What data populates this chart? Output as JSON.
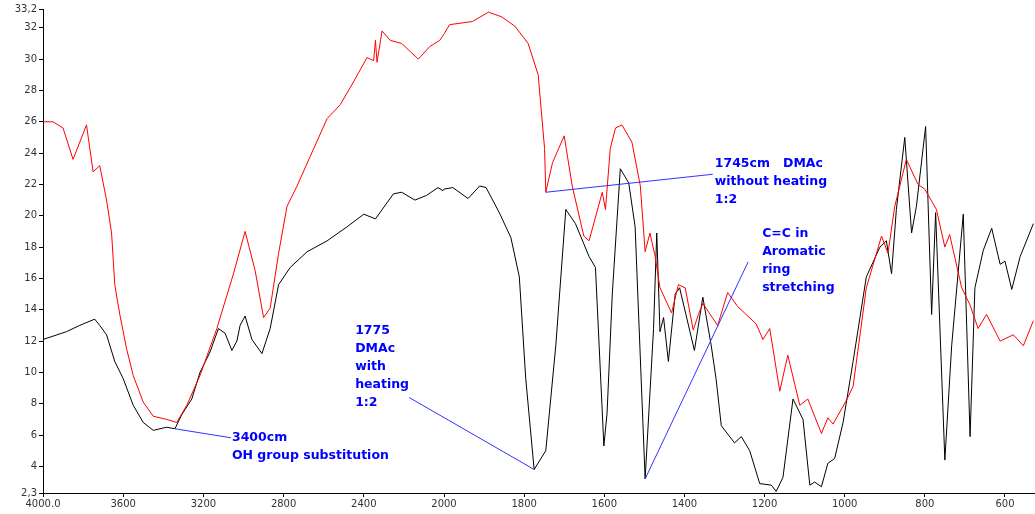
{
  "chart_data": [
    {
      "type": "line",
      "xlim": [
        4000,
        2000
      ],
      "xticks": [
        {
          "value": 4000,
          "label": "4000.0"
        },
        3600,
        3200,
        2800,
        2400,
        2000
      ],
      "ylim": [
        2.3,
        33.2
      ],
      "yticks": [
        {
          "value": 2.3,
          "label": "2,3"
        },
        4,
        6,
        8,
        10,
        12,
        14,
        16,
        18,
        20,
        22,
        24,
        26,
        28,
        30,
        32,
        {
          "value": 33.2,
          "label": "33,2"
        }
      ],
      "grid": false,
      "legend": false,
      "series": [
        {
          "color": "#ff0000",
          "x": [
            4000,
            3950,
            3900,
            3850,
            3783,
            3750,
            3717,
            3683,
            3658,
            3642,
            3617,
            3583,
            3550,
            3500,
            3450,
            3383,
            3333,
            3283,
            3217,
            3133,
            3050,
            2992,
            2942,
            2900,
            2867,
            2825,
            2783,
            2733,
            2667,
            2583,
            2517,
            2449,
            2384,
            2351,
            2342,
            2334,
            2309,
            2268,
            2211,
            2128,
            2071,
            2021,
            2000
          ],
          "values": [
            26.0,
            26.0,
            25.6,
            23.6,
            25.8,
            22.8,
            23.2,
            21.0,
            18.9,
            15.6,
            13.7,
            11.5,
            9.8,
            8.1,
            7.2,
            7.0,
            6.8,
            7.9,
            9.8,
            12.8,
            16.3,
            19.0,
            16.5,
            13.5,
            14.1,
            17.6,
            20.6,
            21.9,
            23.8,
            26.2,
            27.1,
            28.6,
            30.1,
            29.9,
            31.2,
            29.8,
            31.8,
            31.2,
            31.0,
            30.0,
            30.8,
            31.2,
            31.6
          ]
        },
        {
          "color": "#000000",
          "x": [
            4000,
            3883,
            3817,
            3742,
            3717,
            3683,
            3642,
            3600,
            3550,
            3500,
            3450,
            3383,
            3342,
            3308,
            3258,
            3217,
            3167,
            3125,
            3092,
            3058,
            3033,
            3017,
            2992,
            2958,
            2908,
            2867,
            2825,
            2767,
            2683,
            2583,
            2483,
            2400,
            2342,
            2252,
            2211,
            2145,
            2087,
            2030,
            2005,
            2000
          ],
          "values": [
            12.1,
            12.6,
            13.0,
            13.4,
            13.0,
            12.4,
            10.7,
            9.6,
            7.9,
            6.8,
            6.3,
            6.5,
            6.4,
            7.3,
            8.3,
            10.0,
            11.3,
            12.8,
            12.5,
            11.4,
            12.0,
            13.0,
            13.6,
            12.1,
            11.2,
            12.8,
            15.6,
            16.7,
            17.7,
            18.4,
            19.3,
            20.1,
            19.8,
            21.4,
            21.5,
            21.0,
            21.3,
            21.8,
            21.6,
            21.7
          ]
        }
      ],
      "annotations": [
        {
          "text": "3400cm\nOH group substitution",
          "x": 3342,
          "y": 6.4
        }
      ]
    },
    {
      "type": "line",
      "xlim": [
        2000,
        525
      ],
      "xticks": [
        1800,
        1600,
        1400,
        1200,
        1000,
        800,
        600
      ],
      "ylim": [
        2.3,
        33.2
      ],
      "tick_labels": "x",
      "grid": false,
      "legend": false,
      "series": [
        {
          "color": "#ff0000",
          "x": [
            2000,
            1986,
            1929,
            1889,
            1856,
            1823,
            1790,
            1765,
            1749,
            1746,
            1729,
            1700,
            1680,
            1651,
            1638,
            1605,
            1597,
            1585,
            1572,
            1556,
            1531,
            1510,
            1498,
            1486,
            1473,
            1461,
            1432,
            1415,
            1398,
            1378,
            1365,
            1354,
            1333,
            1317,
            1292,
            1267,
            1221,
            1204,
            1187,
            1162,
            1142,
            1112,
            1092,
            1058,
            1042,
            1029,
            996,
            979,
            946,
            908,
            892,
            875,
            846,
            817,
            800,
            771,
            750,
            738,
            708,
            687,
            667,
            646,
            612,
            579,
            554,
            529
          ],
          "values": [
            31.6,
            32.2,
            32.4,
            33.0,
            32.7,
            32.1,
            31.0,
            29.0,
            24.3,
            21.5,
            23.4,
            25.1,
            21.9,
            18.7,
            18.4,
            21.5,
            20.4,
            24.3,
            25.6,
            25.8,
            24.7,
            21.9,
            17.7,
            18.9,
            17.4,
            15.4,
            13.8,
            15.6,
            15.4,
            12.7,
            13.7,
            14.4,
            13.6,
            13.0,
            15.1,
            14.2,
            13.1,
            12.1,
            12.8,
            8.8,
            11.1,
            7.9,
            8.3,
            6.1,
            7.1,
            6.7,
            8.2,
            9.1,
            15.4,
            18.7,
            17.6,
            20.6,
            23.6,
            22.0,
            21.7,
            20.4,
            18.0,
            18.8,
            15.4,
            14.3,
            12.8,
            13.7,
            12.0,
            12.4,
            11.7,
            13.3
          ]
        },
        {
          "color": "#000000",
          "x": [
            2000,
            1978,
            1940,
            1911,
            1895,
            1862,
            1833,
            1812,
            1796,
            1775,
            1746,
            1721,
            1696,
            1672,
            1638,
            1622,
            1601,
            1593,
            1580,
            1560,
            1539,
            1523,
            1498,
            1477,
            1469,
            1461,
            1452,
            1440,
            1423,
            1412,
            1375,
            1354,
            1333,
            1321,
            1308,
            1275,
            1258,
            1237,
            1212,
            1183,
            1171,
            1154,
            1129,
            1104,
            1087,
            1075,
            1058,
            1042,
            1025,
            1004,
            979,
            946,
            912,
            896,
            883,
            871,
            850,
            833,
            821,
            798,
            783,
            773,
            750,
            733,
            704,
            687,
            675,
            654,
            633,
            612,
            600,
            583,
            562,
            529
          ],
          "values": [
            21.7,
            21.8,
            21.1,
            21.9,
            21.8,
            20.2,
            18.6,
            16.1,
            9.6,
            3.8,
            5.0,
            11.7,
            20.4,
            19.5,
            17.4,
            16.7,
            5.3,
            7.4,
            15.0,
            23.0,
            22.1,
            19.3,
            3.2,
            12.8,
            18.9,
            12.6,
            13.5,
            10.7,
            15.0,
            15.4,
            11.4,
            14.8,
            11.7,
            9.6,
            6.6,
            5.5,
            5.9,
            5.0,
            2.9,
            2.8,
            2.4,
            3.3,
            8.3,
            7.0,
            2.8,
            3.0,
            2.7,
            4.2,
            4.5,
            6.8,
            10.7,
            16.1,
            18.0,
            18.4,
            16.3,
            20.4,
            25.0,
            18.9,
            20.6,
            25.7,
            13.7,
            20.2,
            4.4,
            11.7,
            20.1,
            5.9,
            15.4,
            17.8,
            19.2,
            16.9,
            17.1,
            15.3,
            17.4,
            19.5
          ]
        }
      ],
      "annotations": [
        {
          "text": "1775\nDMAc\nwith\nheating\n1:2",
          "x": 1775,
          "y": 3.8
        },
        {
          "text": "1745cm   DMAc\nwithout heating\n1:2",
          "x": 1746,
          "y": 21.5
        },
        {
          "text": "C=C in\nAromatic\nring\nstretching",
          "x": 1498,
          "y": 3.2
        }
      ]
    }
  ]
}
